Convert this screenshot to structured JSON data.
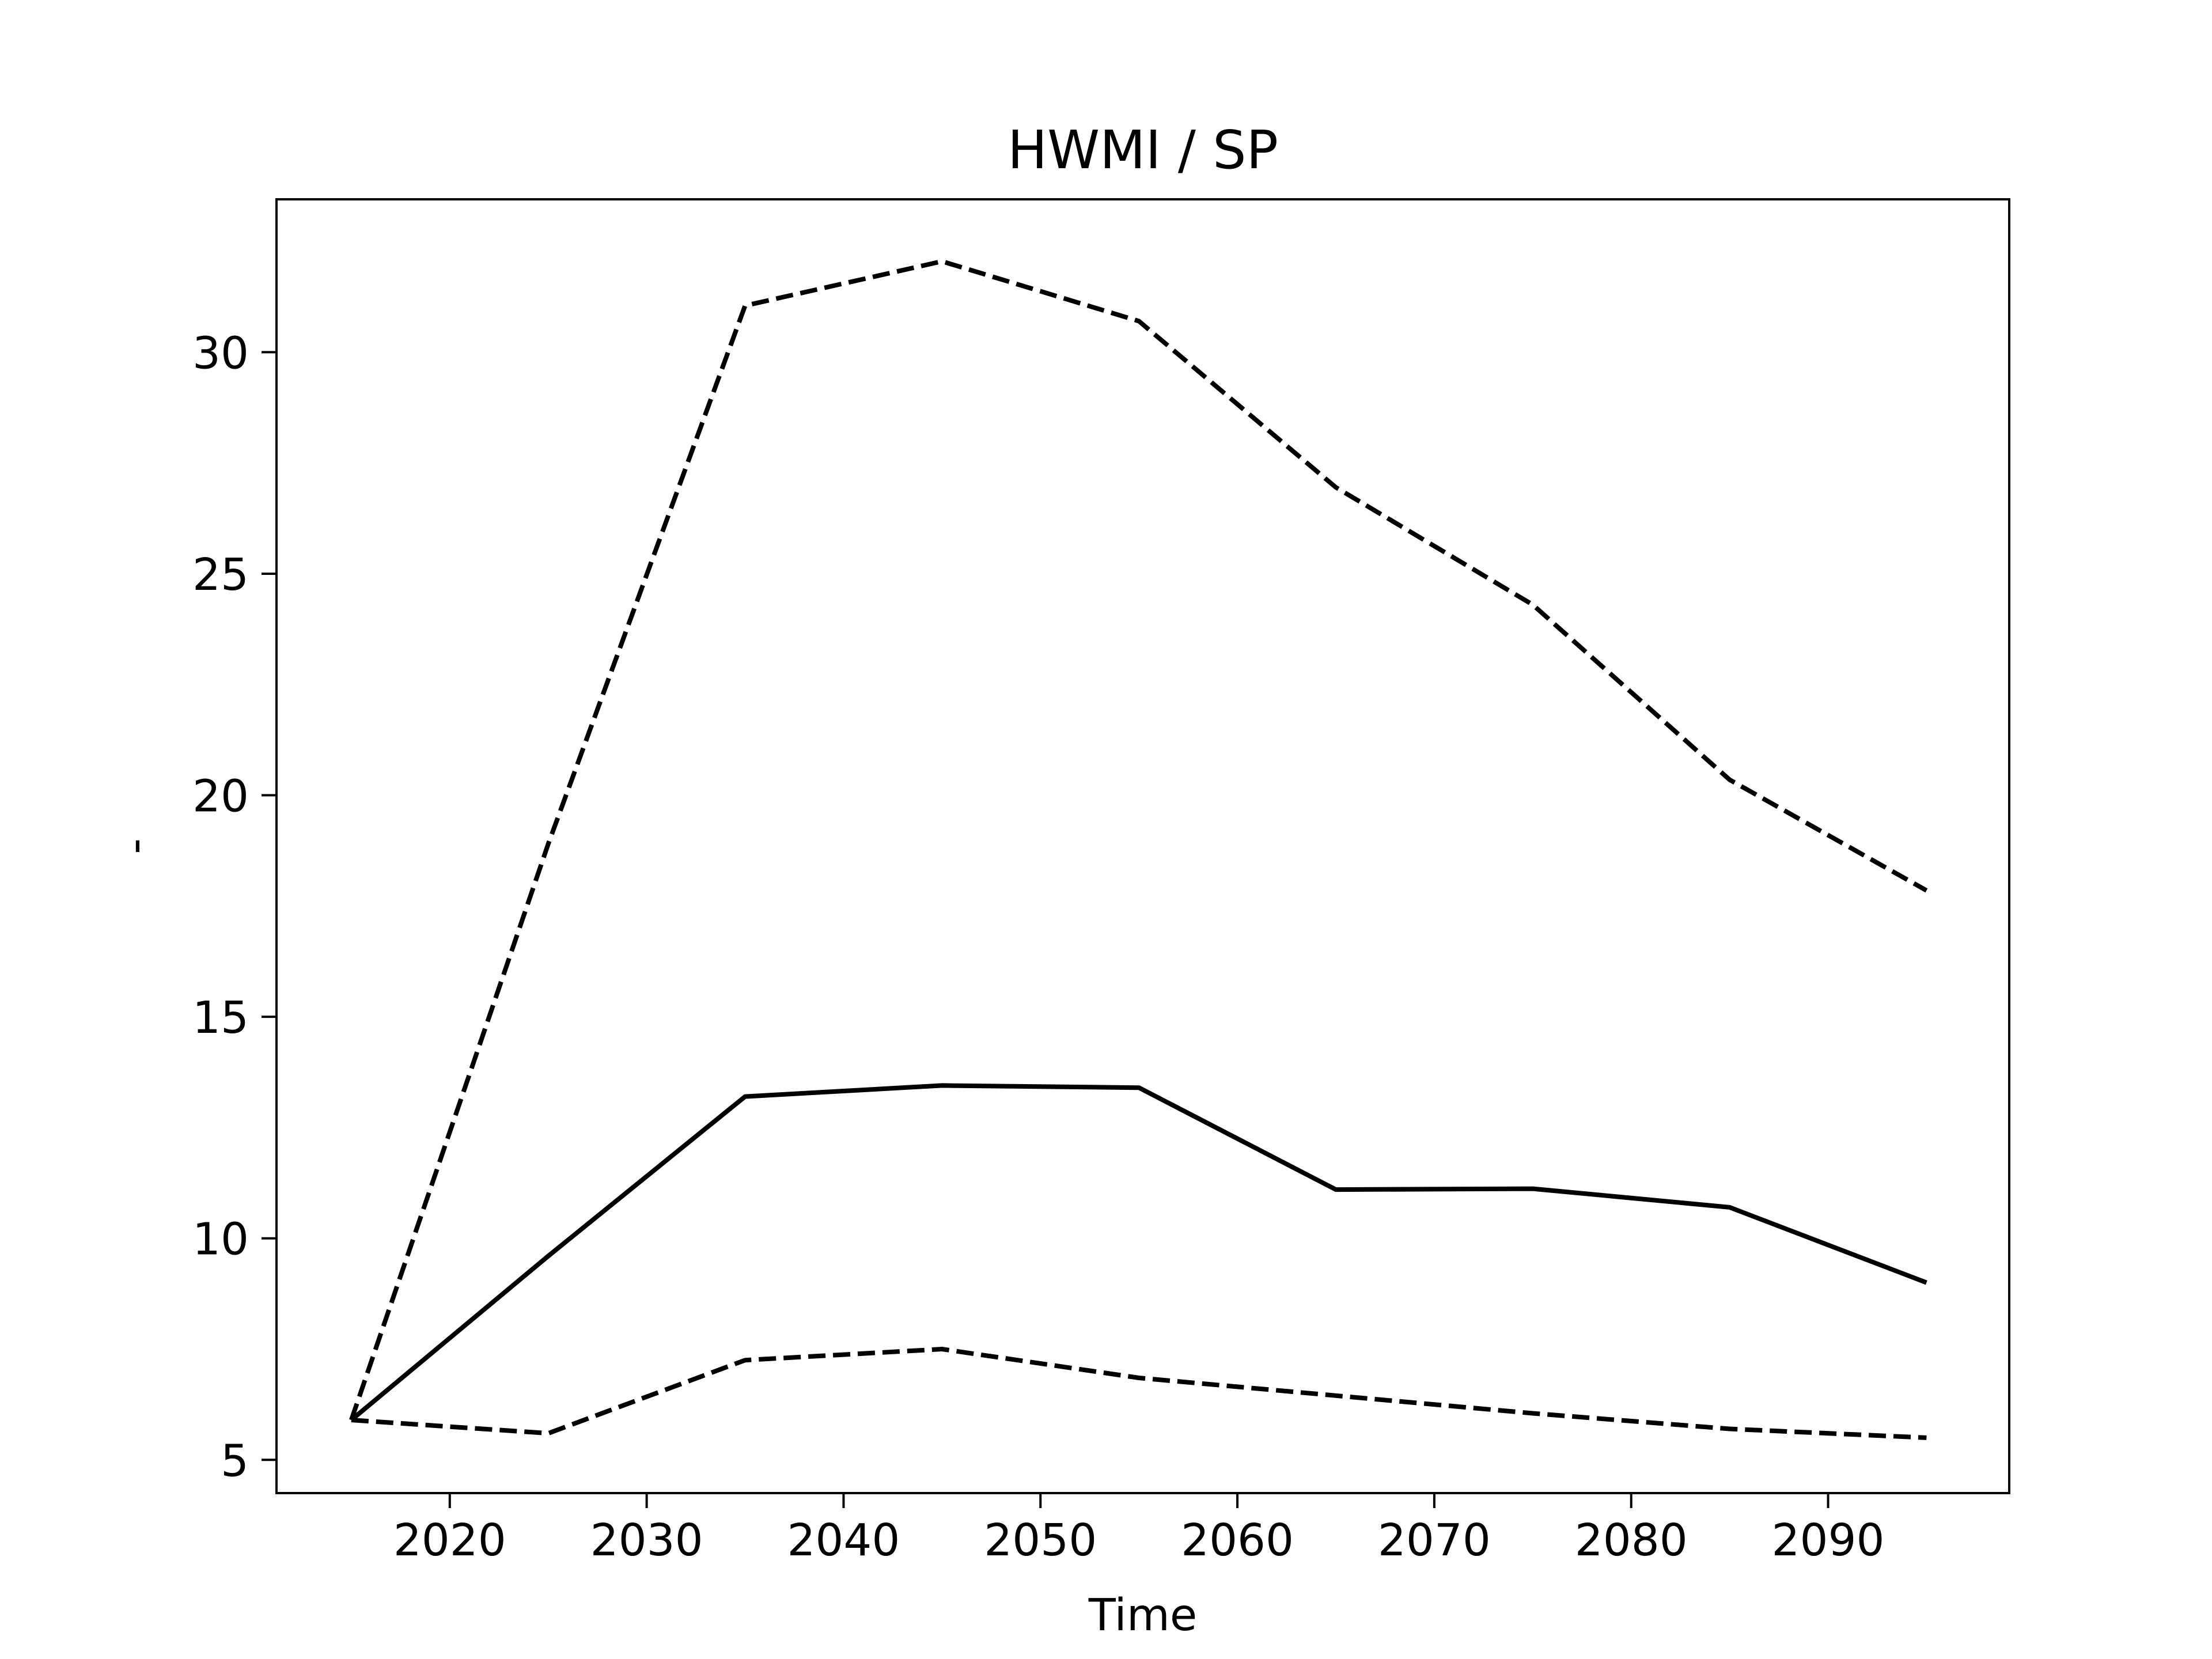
{
  "chart_data": {
    "type": "line",
    "title": "HWMI / SP",
    "xlabel": "Time",
    "ylabel": "-",
    "xlim": [
      2011.2,
      2099.2
    ],
    "ylim": [
      4.25,
      33.45
    ],
    "xticks": [
      2020,
      2030,
      2040,
      2050,
      2060,
      2070,
      2080,
      2090
    ],
    "yticks": [
      5,
      10,
      15,
      20,
      25,
      30
    ],
    "grid": false,
    "legend": "none",
    "x": [
      2015,
      2025,
      2035,
      2045,
      2055,
      2065,
      2075,
      2085,
      2095
    ],
    "series": [
      {
        "style": "solid",
        "color": "#000000",
        "values": [
          5.9,
          9.6,
          13.2,
          13.45,
          13.4,
          11.1,
          11.12,
          10.7,
          9.0
        ]
      },
      {
        "style": "dashed",
        "color": "#000000",
        "values": [
          5.9,
          18.9,
          31.05,
          32.05,
          30.7,
          26.95,
          24.3,
          20.35,
          17.85
        ]
      },
      {
        "style": "dashed",
        "color": "#000000",
        "values": [
          5.9,
          5.6,
          7.25,
          7.5,
          6.85,
          6.45,
          6.05,
          5.7,
          5.5
        ]
      }
    ]
  }
}
